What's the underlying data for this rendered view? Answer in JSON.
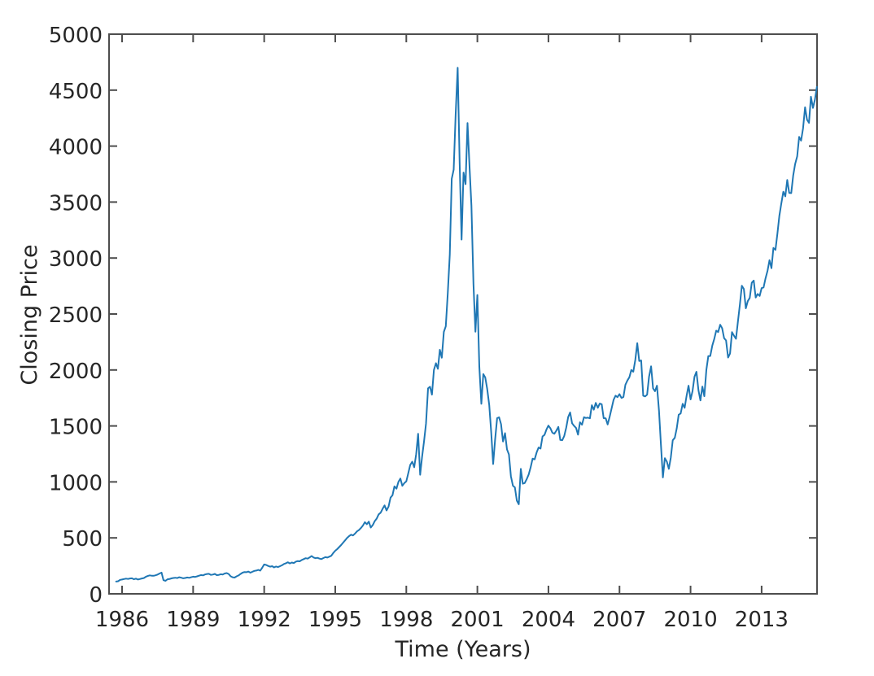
{
  "figure": {
    "background": "#ffffff"
  },
  "chart_data": {
    "type": "line",
    "title": "",
    "xlabel": "Time (Years)",
    "ylabel": "Closing Price",
    "series_name": "closing-price",
    "line_color": "#1f77b4",
    "axis_color": "#4d4d4d",
    "tick_label_color": "#262626",
    "background_color": "#ffffff",
    "grid": false,
    "legend_position": "none",
    "x_domain": [
      1985.45,
      2015.34
    ],
    "y_domain": [
      0,
      5000
    ],
    "xticks": [
      1986,
      1989,
      1992,
      1995,
      1998,
      2001,
      2004,
      2007,
      2010,
      2013
    ],
    "yticks": [
      0,
      500,
      1000,
      1500,
      2000,
      2500,
      3000,
      3500,
      4000,
      4500,
      5000
    ],
    "x_start_year": 1985.75,
    "x_step_years": 0.0833333,
    "values": [
      110,
      113,
      125,
      128,
      132,
      136,
      133,
      137,
      139,
      130,
      136,
      128,
      132,
      137,
      141,
      152,
      159,
      165,
      162,
      161,
      166,
      172,
      182,
      190,
      122,
      116,
      130,
      132,
      138,
      142,
      144,
      141,
      148,
      144,
      139,
      142,
      146,
      143,
      148,
      153,
      151,
      156,
      162,
      168,
      165,
      173,
      177,
      179,
      169,
      172,
      178,
      167,
      169,
      175,
      172,
      182,
      185,
      177,
      157,
      148,
      145,
      156,
      164,
      177,
      189,
      195,
      193,
      199,
      189,
      197,
      205,
      208,
      214,
      207,
      233,
      262,
      258,
      249,
      243,
      247,
      236,
      244,
      239,
      247,
      255,
      267,
      273,
      282,
      272,
      280,
      275,
      288,
      293,
      291,
      302,
      310,
      318,
      315,
      325,
      338,
      325,
      318,
      322,
      315,
      310,
      320,
      328,
      324,
      332,
      340,
      365,
      385,
      400,
      418,
      436,
      458,
      478,
      500,
      515,
      528,
      522,
      538,
      558,
      570,
      588,
      610,
      640,
      622,
      645,
      592,
      615,
      650,
      672,
      710,
      725,
      760,
      790,
      745,
      780,
      860,
      880,
      960,
      940,
      1000,
      1030,
      965,
      990,
      1005,
      1078,
      1152,
      1180,
      1131,
      1247,
      1430,
      1064,
      1226,
      1365,
      1521,
      1836,
      1850,
      1780,
      2000,
      2060,
      2010,
      2180,
      2110,
      2340,
      2390,
      2680,
      3030,
      3708,
      3790,
      4280,
      4700,
      3860,
      3165,
      3764,
      3660,
      4206,
      3828,
      3468,
      2771,
      2342,
      2670,
      2032,
      1698,
      1963,
      1933,
      1830,
      1686,
      1445,
      1160,
      1378,
      1570,
      1577,
      1516,
      1361,
      1435,
      1291,
      1245,
      1051,
      966,
      951,
      833,
      800,
      1116,
      984,
      990,
      1024,
      1067,
      1131,
      1208,
      1201,
      1262,
      1307,
      1298,
      1406,
      1420,
      1468,
      1503,
      1478,
      1440,
      1430,
      1457,
      1491,
      1375,
      1372,
      1409,
      1485,
      1580,
      1621,
      1524,
      1500,
      1482,
      1422,
      1533,
      1511,
      1578,
      1571,
      1574,
      1568,
      1685,
      1645,
      1706,
      1662,
      1700,
      1694,
      1570,
      1568,
      1513,
      1580,
      1655,
      1733,
      1770,
      1757,
      1784,
      1750,
      1759,
      1868,
      1906,
      1935,
      2000,
      1984,
      2091,
      2239,
      2080,
      2085,
      1770,
      1764,
      1780,
      1941,
      2033,
      1836,
      1810,
      1860,
      1635,
      1329,
      1040,
      1212,
      1180,
      1117,
      1217,
      1372,
      1394,
      1478,
      1600,
      1611,
      1698,
      1662,
      1769,
      1860,
      1737,
      1811,
      1940,
      1984,
      1818,
      1728,
      1852,
      1766,
      2001,
      2124,
      2125,
      2218,
      2277,
      2351,
      2339,
      2404,
      2373,
      2284,
      2264,
      2111,
      2147,
      2338,
      2307,
      2278,
      2434,
      2584,
      2752,
      2723,
      2551,
      2615,
      2644,
      2779,
      2799,
      2647,
      2679,
      2661,
      2731,
      2738,
      2818,
      2887,
      2981,
      2909,
      3090,
      3073,
      3218,
      3377,
      3487,
      3592,
      3551,
      3697,
      3582,
      3580,
      3737,
      3840,
      3908,
      4082,
      4049,
      4158,
      4347,
      4236,
      4208,
      4441,
      4341,
      4415,
      4528
    ]
  }
}
